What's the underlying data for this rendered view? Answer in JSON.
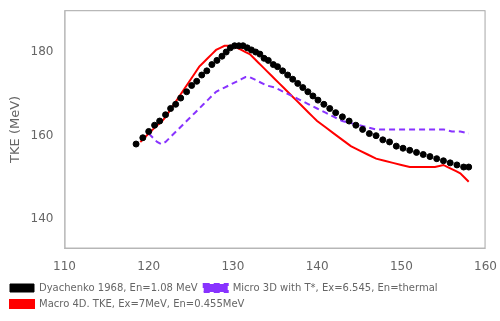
{
  "chart_data": {
    "type": "line",
    "ylabel": "TKE (MeV)",
    "xlim": [
      110,
      160
    ],
    "ylim": [
      133,
      190
    ],
    "xticks": [
      110,
      120,
      130,
      140,
      150,
      160
    ],
    "yticks": [
      140,
      160,
      180
    ],
    "grid": false,
    "legend": "lower left",
    "series": [
      {
        "name": "Dyachenko 1968, En=1.08 MeV",
        "type": "scatter",
        "color": "#000000",
        "marker": "circle",
        "x": [
          118.5,
          119.3,
          120.0,
          120.7,
          121.3,
          122.0,
          122.6,
          123.2,
          123.8,
          124.5,
          125.1,
          125.7,
          126.3,
          126.9,
          127.5,
          128.1,
          128.7,
          129.2,
          129.7,
          130.2,
          130.7,
          131.2,
          131.7,
          132.2,
          132.7,
          133.2,
          133.7,
          134.2,
          134.8,
          135.3,
          135.9,
          136.5,
          137.1,
          137.7,
          138.3,
          138.9,
          139.5,
          140.1,
          140.8,
          141.5,
          142.2,
          143.0,
          143.8,
          144.6,
          145.4,
          146.2,
          147.0,
          147.8,
          148.6,
          149.4,
          150.2,
          151.0,
          151.8,
          152.6,
          153.4,
          154.2,
          155.0,
          155.8,
          156.6,
          157.4,
          158.0
        ],
        "values": [
          158.0,
          159.5,
          161.0,
          162.5,
          163.5,
          165.0,
          166.5,
          167.5,
          169.0,
          170.5,
          172.0,
          173.0,
          174.5,
          175.5,
          177.0,
          178.0,
          179.0,
          180.0,
          181.0,
          181.5,
          181.5,
          181.5,
          181.0,
          180.5,
          180.0,
          179.5,
          178.5,
          178.0,
          177.0,
          176.5,
          175.5,
          174.5,
          173.5,
          172.5,
          171.5,
          170.5,
          169.5,
          168.5,
          167.5,
          166.5,
          165.5,
          164.5,
          163.5,
          162.5,
          161.5,
          160.5,
          160.0,
          159.0,
          158.5,
          157.5,
          157.0,
          156.5,
          156.0,
          155.5,
          155.0,
          154.5,
          154.0,
          153.5,
          153.0,
          152.5,
          152.5
        ]
      },
      {
        "name": "Micro 3D with T*, Ex=6.545, En=thermal",
        "type": "line",
        "color": "#8833FF",
        "line_style": "dashed",
        "x": [
          120.0,
          120.5,
          121.0,
          121.5,
          122.0,
          122.5,
          123.0,
          123.5,
          124.0,
          124.5,
          125.0,
          125.5,
          126.0,
          126.5,
          127.0,
          127.5,
          128.0,
          128.5,
          129.0,
          129.5,
          130.0,
          130.5,
          131.0,
          131.5,
          132.0,
          132.5,
          133.0,
          134.0,
          135.0,
          136.0,
          137.0,
          138.0,
          139.0,
          140.0,
          141.0,
          142.0,
          143.0,
          144.0,
          145.0,
          146.0,
          147.0,
          148.0,
          149.0,
          150.0,
          151.0,
          152.0,
          153.0,
          154.0,
          155.0,
          156.0,
          157.0,
          158.0
        ],
        "values": [
          160.5,
          159.5,
          158.5,
          158.0,
          158.5,
          159.5,
          160.5,
          161.5,
          162.5,
          163.5,
          164.5,
          165.5,
          166.5,
          167.5,
          168.5,
          169.5,
          170.5,
          171.0,
          171.5,
          172.0,
          172.5,
          173.0,
          173.5,
          174.0,
          174.0,
          173.5,
          173.0,
          172.0,
          171.5,
          170.5,
          169.5,
          168.5,
          167.5,
          166.5,
          165.5,
          164.5,
          163.5,
          163.0,
          162.5,
          162.0,
          161.5,
          161.5,
          161.5,
          161.5,
          161.5,
          161.5,
          161.5,
          161.5,
          161.5,
          161.0,
          161.0,
          160.5
        ]
      },
      {
        "name": "Macro 4D. TKE, Ex=7MeV, En=0.455MeV",
        "type": "line",
        "color": "#FF0000",
        "line_style": "solid",
        "x": [
          119.0,
          119.5,
          120.0,
          120.5,
          121.0,
          121.3,
          121.6,
          122.0,
          122.5,
          123.0,
          123.5,
          124.0,
          124.5,
          125.0,
          125.5,
          126.0,
          126.5,
          127.0,
          127.5,
          128.0,
          128.5,
          129.0,
          129.5,
          130.0,
          130.5,
          131.0,
          131.5,
          132.0,
          132.5,
          133.0,
          133.5,
          134.0,
          134.5,
          135.0,
          135.5,
          136.0,
          136.5,
          137.0,
          137.5,
          138.0,
          138.5,
          139.0,
          139.5,
          140.0,
          141.0,
          142.0,
          143.0,
          144.0,
          145.0,
          146.0,
          147.0,
          148.0,
          149.0,
          150.0,
          151.0,
          152.0,
          153.0,
          154.0,
          155.0,
          155.5,
          156.0,
          156.5,
          157.0,
          157.5,
          158.0
        ],
        "values": [
          158.5,
          159.5,
          160.5,
          161.5,
          162.5,
          163.0,
          163.5,
          164.5,
          166.0,
          167.5,
          169.0,
          170.5,
          172.0,
          173.5,
          175.0,
          176.5,
          177.5,
          178.5,
          179.5,
          180.5,
          181.0,
          181.5,
          181.5,
          181.5,
          181.0,
          180.5,
          180.0,
          179.5,
          178.5,
          177.5,
          176.5,
          175.5,
          174.5,
          173.5,
          172.5,
          171.5,
          170.5,
          169.5,
          168.5,
          167.5,
          166.5,
          165.5,
          164.5,
          163.5,
          162.0,
          160.5,
          159.0,
          157.5,
          156.5,
          155.5,
          154.5,
          154.0,
          153.5,
          153.0,
          152.5,
          152.5,
          152.5,
          152.5,
          153.0,
          152.5,
          152.0,
          151.5,
          151.0,
          150.0,
          149.0
        ]
      }
    ]
  }
}
